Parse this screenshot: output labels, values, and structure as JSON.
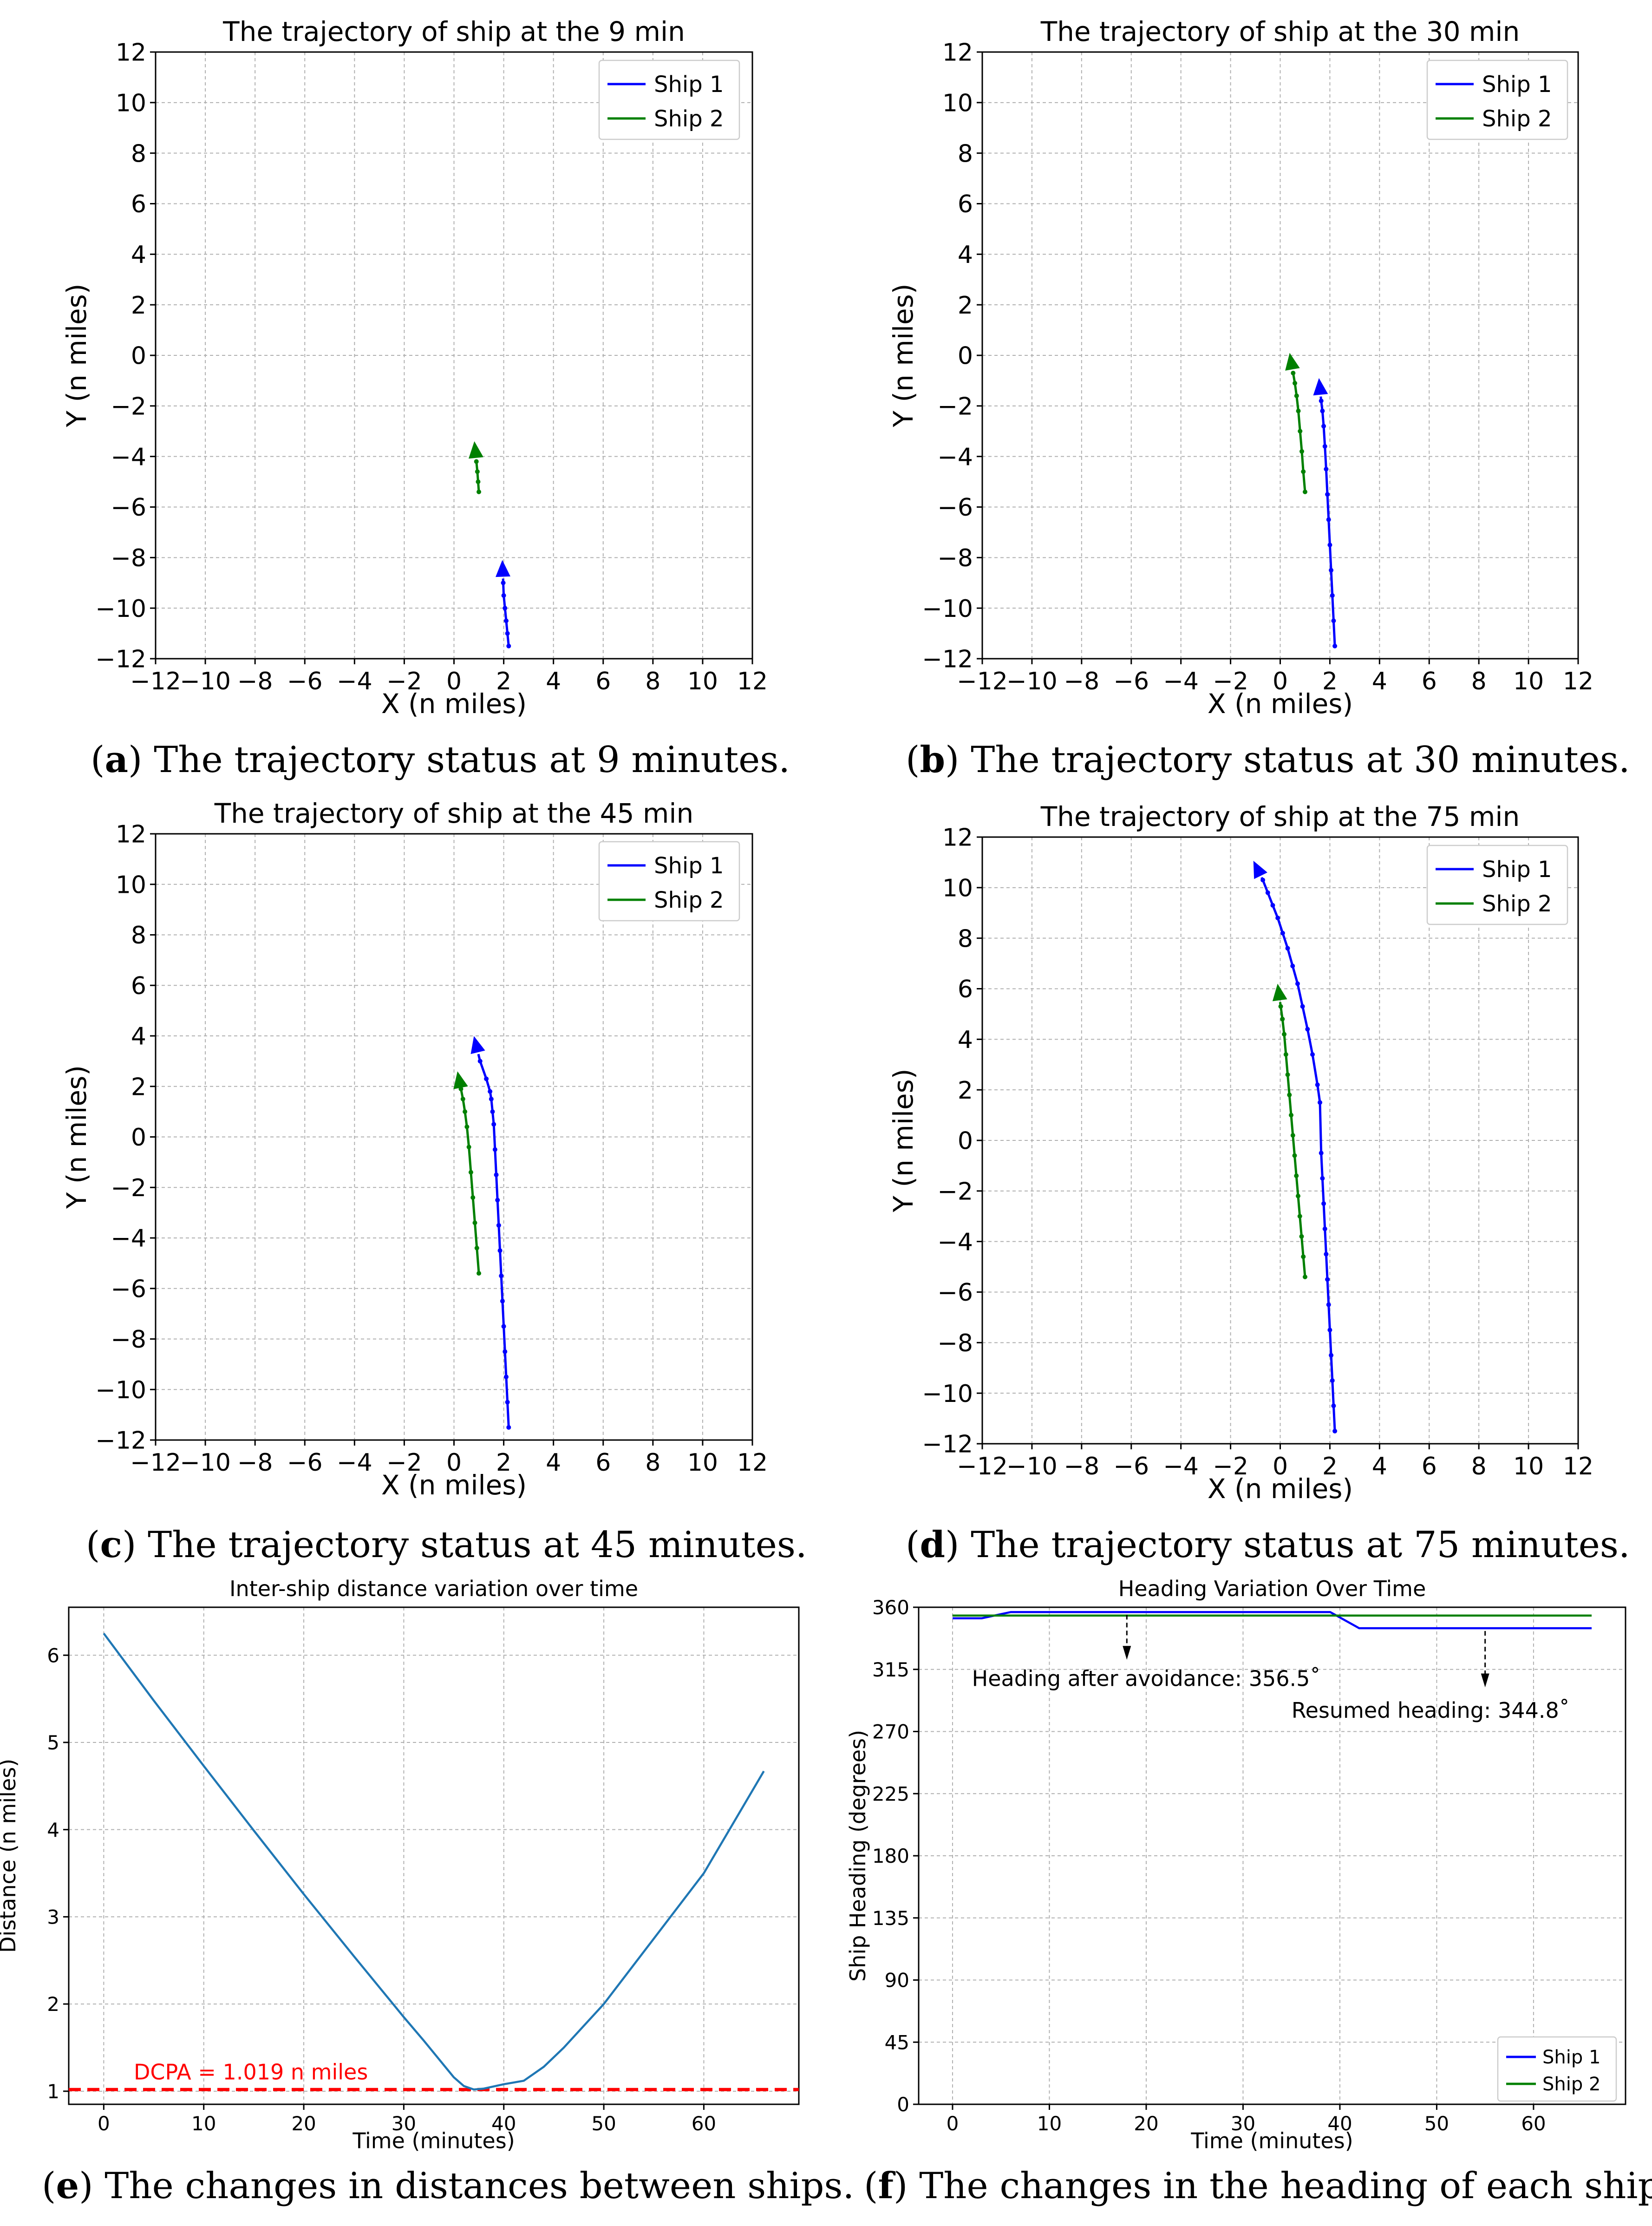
{
  "chart_data": [
    {
      "id": "a",
      "type": "line",
      "title": "The trajectory of ship at the 9 min",
      "xlabel": "X (n miles)",
      "ylabel": "Y (n miles)",
      "xlim": [
        -12,
        12
      ],
      "ylim": [
        -12,
        12
      ],
      "xticks": [
        -12,
        -10,
        -8,
        -6,
        -4,
        -2,
        0,
        2,
        4,
        6,
        8,
        10,
        12
      ],
      "yticks": [
        -12,
        -10,
        -8,
        -6,
        -4,
        -2,
        0,
        2,
        4,
        6,
        8,
        10,
        12
      ],
      "grid": true,
      "legend_position": "upper right",
      "series": [
        {
          "name": "Ship 1",
          "color": "#0000ff",
          "arrow_end": true,
          "x": [
            2.2,
            2.15,
            2.1,
            2.05,
            2.0,
            1.98,
            1.96
          ],
          "y": [
            -11.5,
            -11.0,
            -10.5,
            -10.0,
            -9.5,
            -9.0,
            -8.5
          ]
        },
        {
          "name": "Ship 2",
          "color": "#008000",
          "arrow_end": true,
          "x": [
            1.0,
            0.97,
            0.94,
            0.9,
            0.86
          ],
          "y": [
            -5.4,
            -5.0,
            -4.6,
            -4.2,
            -3.8
          ]
        }
      ]
    },
    {
      "id": "b",
      "type": "line",
      "title": "The trajectory of ship at the 30 min",
      "xlabel": "X (n miles)",
      "ylabel": "Y (n miles)",
      "xlim": [
        -12,
        12
      ],
      "ylim": [
        -12,
        12
      ],
      "xticks": [
        -12,
        -10,
        -8,
        -6,
        -4,
        -2,
        0,
        2,
        4,
        6,
        8,
        10,
        12
      ],
      "yticks": [
        -12,
        -10,
        -8,
        -6,
        -4,
        -2,
        0,
        2,
        4,
        6,
        8,
        10,
        12
      ],
      "grid": true,
      "legend_position": "upper right",
      "series": [
        {
          "name": "Ship 1",
          "color": "#0000ff",
          "arrow_end": true,
          "x": [
            2.2,
            2.15,
            2.1,
            2.05,
            2.0,
            1.95,
            1.9,
            1.85,
            1.8,
            1.75,
            1.7,
            1.65,
            1.6
          ],
          "y": [
            -11.5,
            -10.5,
            -9.5,
            -8.5,
            -7.5,
            -6.5,
            -5.5,
            -4.5,
            -3.6,
            -2.8,
            -2.2,
            -1.8,
            -1.3
          ]
        },
        {
          "name": "Ship 2",
          "color": "#008000",
          "arrow_end": true,
          "x": [
            1.0,
            0.93,
            0.87,
            0.8,
            0.73,
            0.66,
            0.59,
            0.52,
            0.45
          ],
          "y": [
            -5.4,
            -4.6,
            -3.8,
            -3.0,
            -2.2,
            -1.6,
            -1.1,
            -0.7,
            -0.3
          ]
        }
      ]
    },
    {
      "id": "c",
      "type": "line",
      "title": "The trajectory of ship at the 45 min",
      "xlabel": "X (n miles)",
      "ylabel": "Y (n miles)",
      "xlim": [
        -12,
        12
      ],
      "ylim": [
        -12,
        12
      ],
      "xticks": [
        -12,
        -10,
        -8,
        -6,
        -4,
        -2,
        0,
        2,
        4,
        6,
        8,
        10,
        12
      ],
      "yticks": [
        -12,
        -10,
        -8,
        -6,
        -4,
        -2,
        0,
        2,
        4,
        6,
        8,
        10,
        12
      ],
      "grid": true,
      "legend_position": "upper right",
      "series": [
        {
          "name": "Ship 1",
          "color": "#0000ff",
          "arrow_end": true,
          "x": [
            2.2,
            2.15,
            2.1,
            2.05,
            2.0,
            1.95,
            1.9,
            1.85,
            1.8,
            1.75,
            1.7,
            1.65,
            1.6,
            1.55,
            1.5,
            1.45,
            1.3,
            1.05,
            0.9
          ],
          "y": [
            -11.5,
            -10.5,
            -9.5,
            -8.5,
            -7.5,
            -6.5,
            -5.5,
            -4.5,
            -3.5,
            -2.5,
            -1.5,
            -0.5,
            0.5,
            1.0,
            1.5,
            1.8,
            2.3,
            3.0,
            3.6
          ]
        },
        {
          "name": "Ship 2",
          "color": "#008000",
          "arrow_end": true,
          "x": [
            1.0,
            0.92,
            0.84,
            0.76,
            0.68,
            0.6,
            0.52,
            0.44,
            0.36,
            0.28,
            0.22
          ],
          "y": [
            -5.4,
            -4.4,
            -3.4,
            -2.4,
            -1.4,
            -0.4,
            0.4,
            1.0,
            1.5,
            1.9,
            2.2
          ]
        }
      ]
    },
    {
      "id": "d",
      "type": "line",
      "title": "The trajectory of ship at the 75 min",
      "xlabel": "X (n miles)",
      "ylabel": "Y (n miles)",
      "xlim": [
        -12,
        12
      ],
      "ylim": [
        -12,
        12
      ],
      "xticks": [
        -12,
        -10,
        -8,
        -6,
        -4,
        -2,
        0,
        2,
        4,
        6,
        8,
        10,
        12
      ],
      "yticks": [
        -12,
        -10,
        -8,
        -6,
        -4,
        -2,
        0,
        2,
        4,
        6,
        8,
        10,
        12
      ],
      "grid": true,
      "legend_position": "upper right",
      "series": [
        {
          "name": "Ship 1",
          "color": "#0000ff",
          "arrow_end": true,
          "x": [
            2.2,
            2.15,
            2.1,
            2.05,
            2.0,
            1.95,
            1.9,
            1.85,
            1.8,
            1.75,
            1.7,
            1.65,
            1.6,
            1.5,
            1.3,
            1.1,
            0.9,
            0.7,
            0.5,
            0.3,
            0.1,
            -0.1,
            -0.3,
            -0.5,
            -0.7,
            -0.9
          ],
          "y": [
            -11.5,
            -10.5,
            -9.5,
            -8.5,
            -7.5,
            -6.5,
            -5.5,
            -4.5,
            -3.5,
            -2.5,
            -1.5,
            -0.5,
            1.5,
            2.2,
            3.4,
            4.4,
            5.3,
            6.2,
            6.9,
            7.6,
            8.2,
            8.8,
            9.3,
            9.8,
            10.3,
            10.7
          ]
        },
        {
          "name": "Ship 2",
          "color": "#008000",
          "arrow_end": true,
          "x": [
            1.0,
            0.93,
            0.86,
            0.79,
            0.72,
            0.65,
            0.58,
            0.51,
            0.44,
            0.37,
            0.3,
            0.23,
            0.16,
            0.09,
            0.02,
            -0.05
          ],
          "y": [
            -5.4,
            -4.6,
            -3.8,
            -3.0,
            -2.2,
            -1.4,
            -0.6,
            0.2,
            1.0,
            1.8,
            2.6,
            3.4,
            4.2,
            4.8,
            5.3,
            5.8
          ]
        }
      ]
    },
    {
      "id": "e",
      "type": "line",
      "title": "Inter-ship distance variation over time",
      "xlabel": "Time (minutes)",
      "ylabel": "Distance (n miles)",
      "xlim": [
        -3.5,
        69.5
      ],
      "ylim": [
        0.85,
        6.55
      ],
      "xticks": [
        0,
        10,
        20,
        30,
        40,
        50,
        60
      ],
      "yticks": [
        1,
        2,
        3,
        4,
        5,
        6
      ],
      "grid": true,
      "series": [
        {
          "name": "Distance",
          "color": "#1f77b4",
          "x": [
            0,
            5,
            10,
            15,
            20,
            25,
            30,
            32,
            34,
            35,
            36,
            37,
            38,
            40,
            42,
            44,
            46,
            50,
            55,
            60,
            66
          ],
          "y": [
            6.25,
            5.48,
            4.73,
            3.99,
            3.26,
            2.55,
            1.85,
            1.58,
            1.3,
            1.16,
            1.06,
            1.02,
            1.03,
            1.08,
            1.12,
            1.28,
            1.5,
            2.0,
            2.75,
            3.5,
            4.67
          ]
        }
      ],
      "reference_line": {
        "y": 1.019,
        "color": "#ff0000",
        "label": "DCPA = 1.019 n miles"
      }
    },
    {
      "id": "f",
      "type": "line",
      "title": "Heading Variation Over Time",
      "xlabel": "Time (minutes)",
      "ylabel": "Ship Heading (degrees)",
      "xlim": [
        -3.5,
        69.5
      ],
      "ylim": [
        0,
        360
      ],
      "xticks": [
        0,
        10,
        20,
        30,
        40,
        50,
        60
      ],
      "yticks": [
        0,
        45,
        90,
        135,
        180,
        225,
        270,
        315,
        360
      ],
      "grid": true,
      "legend_position": "lower right",
      "series": [
        {
          "name": "Ship 1",
          "color": "#0000ff",
          "x": [
            0,
            3,
            6,
            39,
            42,
            66
          ],
          "y": [
            352,
            352,
            356.5,
            356.5,
            344.8,
            344.8
          ]
        },
        {
          "name": "Ship 2",
          "color": "#008000",
          "x": [
            0,
            66
          ],
          "y": [
            354,
            354
          ]
        }
      ],
      "annotations": [
        {
          "text": "Heading after avoidance: 356.5˚",
          "x": 18,
          "y": 356.5
        },
        {
          "text": "Resumed heading: 344.8˚",
          "x": 55,
          "y": 344.8
        }
      ]
    }
  ],
  "captions": [
    {
      "letter": "a",
      "text": " The trajectory status at 9 minutes."
    },
    {
      "letter": "b",
      "text": " The trajectory status at 30 minutes."
    },
    {
      "letter": "c",
      "text": " The trajectory status at 45 minutes."
    },
    {
      "letter": "d",
      "text": " The trajectory status at 75 minutes."
    },
    {
      "letter": "e",
      "text": " The changes in distances between ships."
    },
    {
      "letter": "f",
      "text": " The changes in the heading of each ship."
    }
  ]
}
